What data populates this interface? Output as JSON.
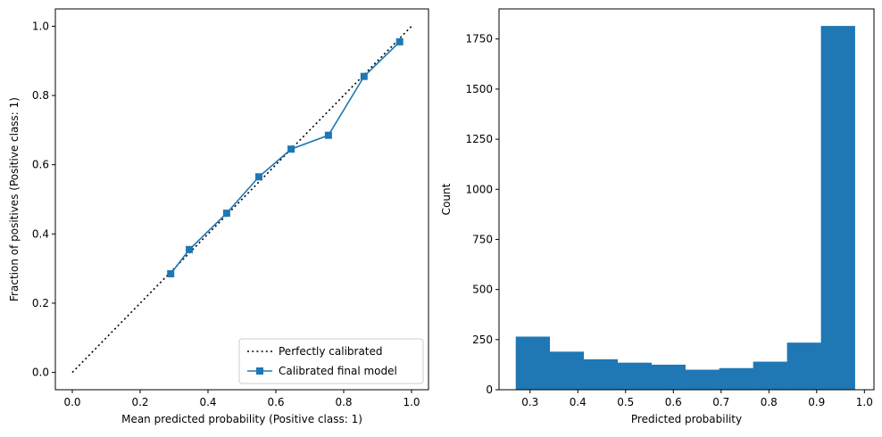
{
  "chart_data": [
    {
      "type": "line",
      "xlabel": "Mean predicted probability (Positive class: 1)",
      "ylabel": "Fraction of positives (Positive class: 1)",
      "xlim": [
        -0.05,
        1.05
      ],
      "ylim": [
        -0.05,
        1.05
      ],
      "xticks": [
        0.0,
        0.2,
        0.4,
        0.6,
        0.8,
        1.0
      ],
      "yticks": [
        0.0,
        0.2,
        0.4,
        0.6,
        0.8,
        1.0
      ],
      "xtick_labels": [
        "0.0",
        "0.2",
        "0.4",
        "0.6",
        "0.8",
        "1.0"
      ],
      "ytick_labels": [
        "0.0",
        "0.2",
        "0.4",
        "0.6",
        "0.8",
        "1.0"
      ],
      "grid": false,
      "legend_position": "lower-right",
      "series": [
        {
          "name": "Perfectly calibrated",
          "style": "dotted",
          "color": "#000000",
          "x": [
            0.0,
            1.0
          ],
          "y": [
            0.0,
            1.0
          ]
        },
        {
          "name": "Calibrated final model",
          "style": "solid",
          "marker": "square",
          "color": "#1f77b4",
          "x": [
            0.29,
            0.345,
            0.455,
            0.55,
            0.645,
            0.755,
            0.86,
            0.965
          ],
          "y": [
            0.285,
            0.355,
            0.46,
            0.565,
            0.645,
            0.685,
            0.855,
            0.955
          ]
        }
      ]
    },
    {
      "type": "bar",
      "xlabel": "Predicted probability",
      "ylabel": "Count",
      "xlim": [
        0.235,
        1.02
      ],
      "ylim": [
        0,
        1900
      ],
      "xticks": [
        0.3,
        0.4,
        0.5,
        0.6,
        0.7,
        0.8,
        0.9,
        1.0
      ],
      "yticks": [
        0,
        250,
        500,
        750,
        1000,
        1250,
        1500,
        1750
      ],
      "xtick_labels": [
        "0.3",
        "0.4",
        "0.5",
        "0.6",
        "0.7",
        "0.8",
        "0.9",
        "1.0"
      ],
      "ytick_labels": [
        "0",
        "250",
        "500",
        "750",
        "1000",
        "1250",
        "1500",
        "1750"
      ],
      "grid": false,
      "color": "#1f77b4",
      "bin_edges": [
        0.27,
        0.341,
        0.412,
        0.483,
        0.554,
        0.625,
        0.696,
        0.767,
        0.838,
        0.909,
        0.98
      ],
      "values": [
        265,
        190,
        152,
        135,
        125,
        100,
        108,
        140,
        235,
        1815
      ]
    }
  ]
}
